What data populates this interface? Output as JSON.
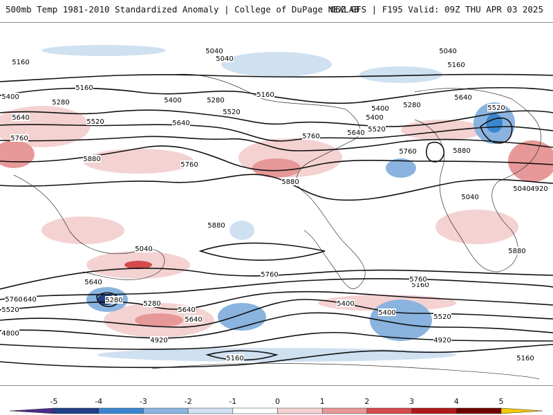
{
  "header": {
    "title_left": "500mb Temp 1981-2010 Standardized Anomaly | College of DuPage NEXLAB",
    "title_right": "06Z GFS | F195 Valid: 09Z THU APR 03 2025"
  },
  "map": {
    "contour_labels": [
      "5040",
      "5040",
      "5040",
      "5160",
      "5160",
      "5160",
      "5160",
      "5280",
      "5280",
      "5280",
      "5400",
      "5400",
      "5400",
      "5400",
      "5520",
      "5520",
      "5520",
      "5520",
      "5640",
      "5640",
      "5640",
      "5640",
      "5760",
      "5760",
      "5760",
      "5760",
      "5880",
      "5880",
      "5880",
      "5880",
      "5040",
      "5040",
      "5040",
      "4920",
      "4920",
      "4920",
      "4800",
      "5160",
      "5160",
      "5160",
      "5280",
      "5280",
      "5400",
      "5400",
      "5520",
      "5520",
      "5640",
      "5640",
      "5640",
      "5640",
      "5760",
      "5760",
      "5760",
      "5880"
    ],
    "anomaly_colors": {
      "neg5": "#4b2c8a",
      "neg4": "#1f3f86",
      "neg3": "#3b86d1",
      "neg2": "#8ab4df",
      "neg1": "#cfe0f1",
      "zero": "#ffffff",
      "pos1": "#f4d2d2",
      "pos2": "#e79898",
      "pos3": "#d34b4b",
      "pos4": "#b01818",
      "pos5": "#6e0000",
      "over": "#f5c800"
    }
  },
  "colorbar": {
    "ticks": [
      "-5",
      "-4",
      "-3",
      "-2",
      "-1",
      "0",
      "1",
      "2",
      "3",
      "4",
      "5"
    ],
    "colors": [
      "#4b2c8a",
      "#1f3f86",
      "#3b86d1",
      "#8ab4df",
      "#cfe0f1",
      "#ffffff",
      "#f4d2d2",
      "#e79898",
      "#d34b4b",
      "#b01818",
      "#6e0000"
    ]
  }
}
